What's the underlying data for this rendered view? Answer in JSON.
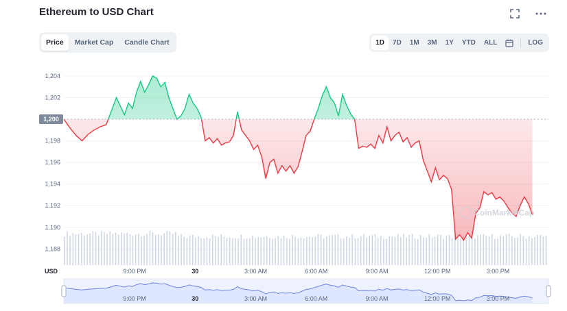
{
  "page": {
    "title": "Ethereum to USD Chart"
  },
  "tabs_left": [
    {
      "label": "Price",
      "active": true
    },
    {
      "label": "Market Cap",
      "active": false
    },
    {
      "label": "Candle Chart",
      "active": false
    }
  ],
  "tabs_right": [
    {
      "label": "1D",
      "active": true
    },
    {
      "label": "7D",
      "active": false
    },
    {
      "label": "1M",
      "active": false
    },
    {
      "label": "3M",
      "active": false
    },
    {
      "label": "1Y",
      "active": false
    },
    {
      "label": "YTD",
      "active": false
    },
    {
      "label": "ALL",
      "active": false
    }
  ],
  "log_label": "LOG",
  "icons": {
    "fullscreen": "fullscreen-icon",
    "more": "more-icon",
    "calendar": "calendar-icon"
  },
  "colors": {
    "up": "#16c784",
    "down": "#ea3943",
    "volume": "#cfd6e4",
    "navigator_fill": "#dfe6ff",
    "navigator_line": "#6d84d9"
  },
  "watermark": "CoinMarketCap",
  "chart_data": {
    "type": "line",
    "currency_label": "USD",
    "baseline": 1200,
    "baseline_label": "1,200",
    "y_ticks": [
      "1,204",
      "1,202",
      "1,198",
      "1,196",
      "1,194",
      "1,192",
      "1,190",
      "1,188"
    ],
    "y_tick_values": [
      1204,
      1202,
      1198,
      1196,
      1194,
      1192,
      1190,
      1188
    ],
    "ylim": [
      1186.5,
      1205.2
    ],
    "x_ticks": [
      {
        "label": "9:00 PM",
        "bold": false
      },
      {
        "label": "30",
        "bold": true
      },
      {
        "label": "3:00 AM",
        "bold": false
      },
      {
        "label": "6:00 AM",
        "bold": false
      },
      {
        "label": "9:00 AM",
        "bold": false
      },
      {
        "label": "12:00 PM",
        "bold": false
      },
      {
        "label": "3:00 PM",
        "bold": false
      }
    ],
    "x_tick_hours": [
      3.5,
      6.5,
      9.5,
      12.5,
      15.5,
      18.5,
      21.5
    ],
    "x_range_hours": [
      0,
      24
    ],
    "x_unit": "hours from chart start",
    "price": [
      [
        0.0,
        1200.0
      ],
      [
        0.3,
        1199.2
      ],
      [
        0.6,
        1198.5
      ],
      [
        0.9,
        1198.0
      ],
      [
        1.2,
        1198.6
      ],
      [
        1.5,
        1199.0
      ],
      [
        1.8,
        1199.3
      ],
      [
        2.1,
        1199.5
      ],
      [
        2.4,
        1201.0
      ],
      [
        2.6,
        1202.0
      ],
      [
        2.8,
        1201.2
      ],
      [
        3.0,
        1200.4
      ],
      [
        3.2,
        1201.5
      ],
      [
        3.4,
        1201.0
      ],
      [
        3.6,
        1202.5
      ],
      [
        3.8,
        1203.5
      ],
      [
        4.0,
        1202.5
      ],
      [
        4.2,
        1203.2
      ],
      [
        4.4,
        1204.0
      ],
      [
        4.6,
        1203.8
      ],
      [
        4.8,
        1203.0
      ],
      [
        5.0,
        1203.4
      ],
      [
        5.2,
        1202.0
      ],
      [
        5.4,
        1201.0
      ],
      [
        5.6,
        1200.0
      ],
      [
        5.8,
        1200.3
      ],
      [
        6.0,
        1201.0
      ],
      [
        6.2,
        1202.3
      ],
      [
        6.4,
        1201.5
      ],
      [
        6.6,
        1201.0
      ],
      [
        6.8,
        1200.2
      ],
      [
        7.0,
        1198.0
      ],
      [
        7.2,
        1198.3
      ],
      [
        7.4,
        1197.8
      ],
      [
        7.6,
        1198.2
      ],
      [
        7.8,
        1197.6
      ],
      [
        8.0,
        1197.8
      ],
      [
        8.2,
        1197.9
      ],
      [
        8.4,
        1198.5
      ],
      [
        8.6,
        1200.7
      ],
      [
        8.8,
        1199.0
      ],
      [
        9.0,
        1198.5
      ],
      [
        9.2,
        1198.0
      ],
      [
        9.4,
        1197.2
      ],
      [
        9.6,
        1197.6
      ],
      [
        9.8,
        1196.5
      ],
      [
        10.0,
        1194.5
      ],
      [
        10.2,
        1196.0
      ],
      [
        10.4,
        1196.3
      ],
      [
        10.6,
        1195.0
      ],
      [
        10.8,
        1195.7
      ],
      [
        11.0,
        1195.2
      ],
      [
        11.2,
        1195.7
      ],
      [
        11.4,
        1195.0
      ],
      [
        11.6,
        1195.6
      ],
      [
        11.8,
        1197.0
      ],
      [
        12.0,
        1198.5
      ],
      [
        12.2,
        1198.9
      ],
      [
        12.4,
        1200.0
      ],
      [
        12.6,
        1201.0
      ],
      [
        12.8,
        1202.2
      ],
      [
        13.0,
        1203.0
      ],
      [
        13.2,
        1202.0
      ],
      [
        13.4,
        1201.5
      ],
      [
        13.6,
        1200.3
      ],
      [
        13.8,
        1202.3
      ],
      [
        14.0,
        1201.3
      ],
      [
        14.2,
        1200.5
      ],
      [
        14.4,
        1200.0
      ],
      [
        14.6,
        1197.3
      ],
      [
        14.8,
        1197.5
      ],
      [
        15.0,
        1197.4
      ],
      [
        15.2,
        1197.7
      ],
      [
        15.4,
        1197.3
      ],
      [
        15.6,
        1198.5
      ],
      [
        15.8,
        1197.8
      ],
      [
        16.0,
        1199.3
      ],
      [
        16.2,
        1198.0
      ],
      [
        16.4,
        1198.5
      ],
      [
        16.6,
        1198.8
      ],
      [
        16.8,
        1197.9
      ],
      [
        17.0,
        1198.3
      ],
      [
        17.2,
        1197.4
      ],
      [
        17.4,
        1197.8
      ],
      [
        17.6,
        1198.0
      ],
      [
        17.8,
        1196.2
      ],
      [
        18.0,
        1195.2
      ],
      [
        18.2,
        1194.2
      ],
      [
        18.4,
        1195.5
      ],
      [
        18.6,
        1194.4
      ],
      [
        18.8,
        1194.8
      ],
      [
        19.0,
        1194.5
      ],
      [
        19.2,
        1193.5
      ],
      [
        19.4,
        1188.9
      ],
      [
        19.6,
        1189.3
      ],
      [
        19.8,
        1188.8
      ],
      [
        20.0,
        1189.5
      ],
      [
        20.2,
        1189.0
      ],
      [
        20.4,
        1191.3
      ],
      [
        20.6,
        1191.8
      ],
      [
        20.8,
        1193.3
      ],
      [
        21.0,
        1193.0
      ],
      [
        21.2,
        1193.2
      ],
      [
        21.4,
        1192.6
      ],
      [
        21.6,
        1192.8
      ],
      [
        21.8,
        1192.4
      ],
      [
        22.0,
        1191.8
      ],
      [
        22.2,
        1191.3
      ],
      [
        22.4,
        1191.0
      ],
      [
        22.6,
        1192.0
      ],
      [
        22.8,
        1192.8
      ],
      [
        23.0,
        1192.2
      ],
      [
        23.2,
        1191.2
      ]
    ]
  }
}
